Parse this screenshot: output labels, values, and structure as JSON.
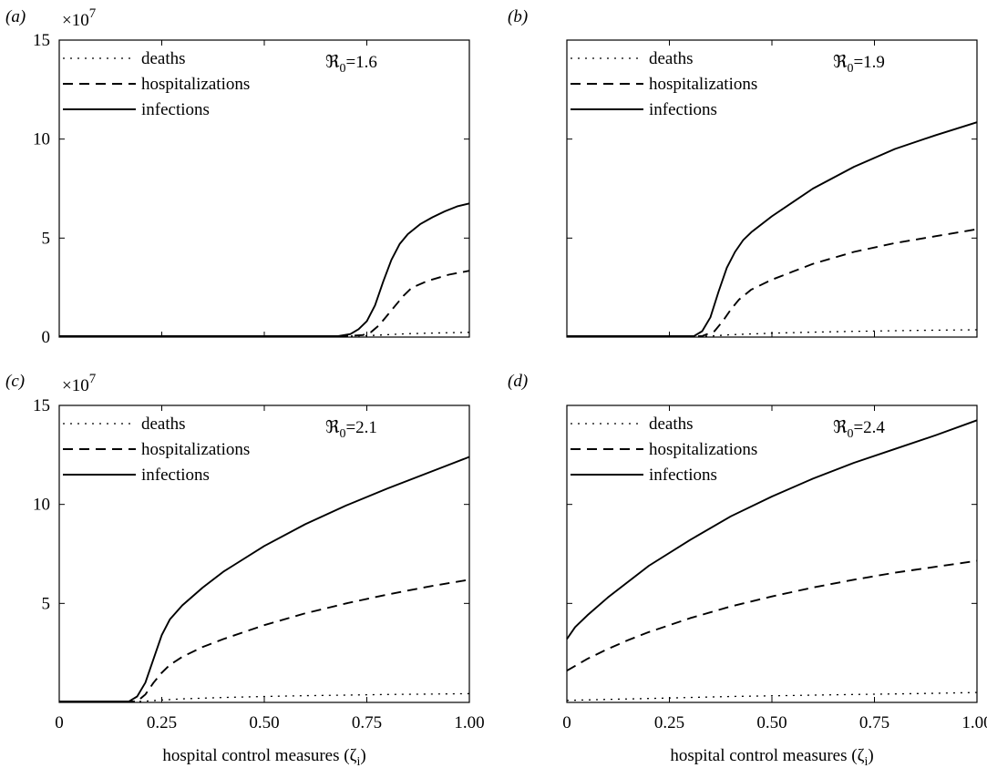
{
  "figure": {
    "x_axis_label": "hospital control measures (ζ",
    "x_axis_label_sub": "i",
    "x_axis_label_end": ")",
    "exponent_base": "×10",
    "exponent_power": "7"
  },
  "chart_data": [
    {
      "type": "line",
      "panel_label": "(a)",
      "annotation": {
        "symbol": "ℜ",
        "sub": "0",
        "value": "=1.6"
      },
      "xlim": [
        0,
        1
      ],
      "ylim": [
        0,
        15
      ],
      "y_scale_note": "×10^7",
      "x_ticks": [
        0,
        0.25,
        0.5,
        0.75,
        1.0
      ],
      "x_tick_labels": [],
      "y_ticks": [
        0,
        5,
        10,
        15
      ],
      "y_tick_labels": [
        "0",
        "5",
        "10",
        "15"
      ],
      "show_exponent": true,
      "legend": [
        "deaths",
        "hospitalizations",
        "infections"
      ],
      "series": [
        {
          "name": "deaths",
          "style": "dotted",
          "x": [
            0,
            0.7,
            0.75,
            0.8,
            0.85,
            0.9,
            0.95,
            1.0
          ],
          "y": [
            0.05,
            0.05,
            0.07,
            0.12,
            0.17,
            0.2,
            0.22,
            0.24
          ]
        },
        {
          "name": "hospitalizations",
          "style": "dashed",
          "x": [
            0,
            0.7,
            0.74,
            0.76,
            0.78,
            0.8,
            0.82,
            0.84,
            0.86,
            0.9,
            0.95,
            1.0
          ],
          "y": [
            0.05,
            0.05,
            0.1,
            0.25,
            0.6,
            1.1,
            1.6,
            2.1,
            2.5,
            2.85,
            3.15,
            3.35
          ]
        },
        {
          "name": "infections",
          "style": "solid",
          "x": [
            0,
            0.68,
            0.71,
            0.73,
            0.75,
            0.77,
            0.79,
            0.81,
            0.83,
            0.85,
            0.88,
            0.91,
            0.94,
            0.97,
            1.0
          ],
          "y": [
            0.05,
            0.05,
            0.15,
            0.4,
            0.8,
            1.6,
            2.8,
            3.9,
            4.7,
            5.2,
            5.7,
            6.05,
            6.35,
            6.6,
            6.75
          ]
        }
      ]
    },
    {
      "type": "line",
      "panel_label": "(b)",
      "annotation": {
        "symbol": "ℜ",
        "sub": "0",
        "value": "=1.9"
      },
      "xlim": [
        0,
        1
      ],
      "ylim": [
        0,
        15
      ],
      "x_ticks": [
        0,
        0.25,
        0.5,
        0.75,
        1.0
      ],
      "x_tick_labels": [],
      "y_ticks": [
        0,
        5,
        10,
        15
      ],
      "y_tick_labels": [],
      "show_exponent": false,
      "legend": [
        "deaths",
        "hospitalizations",
        "infections"
      ],
      "series": [
        {
          "name": "deaths",
          "style": "dotted",
          "x": [
            0,
            0.35,
            0.4,
            0.5,
            0.6,
            0.7,
            0.8,
            0.9,
            1.0
          ],
          "y": [
            0.05,
            0.05,
            0.12,
            0.2,
            0.25,
            0.29,
            0.32,
            0.35,
            0.37
          ]
        },
        {
          "name": "hospitalizations",
          "style": "dashed",
          "x": [
            0,
            0.33,
            0.36,
            0.38,
            0.4,
            0.42,
            0.45,
            0.5,
            0.55,
            0.6,
            0.7,
            0.8,
            0.9,
            1.0
          ],
          "y": [
            0.05,
            0.05,
            0.3,
            0.8,
            1.4,
            1.9,
            2.4,
            2.9,
            3.3,
            3.7,
            4.3,
            4.75,
            5.1,
            5.45
          ]
        },
        {
          "name": "infections",
          "style": "solid",
          "x": [
            0,
            0.31,
            0.33,
            0.35,
            0.37,
            0.39,
            0.41,
            0.43,
            0.45,
            0.5,
            0.55,
            0.6,
            0.7,
            0.8,
            0.9,
            1.0
          ],
          "y": [
            0.05,
            0.05,
            0.3,
            1.0,
            2.3,
            3.5,
            4.3,
            4.9,
            5.3,
            6.1,
            6.8,
            7.5,
            8.6,
            9.5,
            10.2,
            10.85
          ]
        }
      ]
    },
    {
      "type": "line",
      "panel_label": "(c)",
      "annotation": {
        "symbol": "ℜ",
        "sub": "0",
        "value": "=2.1"
      },
      "xlim": [
        0,
        1
      ],
      "ylim": [
        0,
        15
      ],
      "x_ticks": [
        0,
        0.25,
        0.5,
        0.75,
        1.0
      ],
      "x_tick_labels": [
        "0",
        "0.25",
        "0.50",
        "0.75",
        "1.00"
      ],
      "y_ticks": [
        0,
        5,
        10,
        15
      ],
      "y_tick_labels": [
        "",
        "5",
        "10",
        "15"
      ],
      "show_exponent": true,
      "legend": [
        "deaths",
        "hospitalizations",
        "infections"
      ],
      "series": [
        {
          "name": "deaths",
          "style": "dotted",
          "x": [
            0,
            0.2,
            0.25,
            0.3,
            0.4,
            0.5,
            0.6,
            0.7,
            0.8,
            0.9,
            1.0
          ],
          "y": [
            0.05,
            0.05,
            0.12,
            0.18,
            0.25,
            0.3,
            0.34,
            0.37,
            0.4,
            0.42,
            0.44
          ]
        },
        {
          "name": "hospitalizations",
          "style": "dashed",
          "x": [
            0,
            0.19,
            0.21,
            0.23,
            0.25,
            0.27,
            0.3,
            0.35,
            0.4,
            0.5,
            0.6,
            0.7,
            0.8,
            0.9,
            1.0
          ],
          "y": [
            0.05,
            0.05,
            0.4,
            1.0,
            1.5,
            1.9,
            2.3,
            2.8,
            3.2,
            3.9,
            4.5,
            5.0,
            5.45,
            5.85,
            6.2
          ]
        },
        {
          "name": "infections",
          "style": "solid",
          "x": [
            0,
            0.17,
            0.19,
            0.21,
            0.23,
            0.25,
            0.27,
            0.3,
            0.35,
            0.4,
            0.5,
            0.6,
            0.7,
            0.8,
            0.9,
            1.0
          ],
          "y": [
            0.05,
            0.05,
            0.3,
            1.0,
            2.2,
            3.4,
            4.2,
            4.9,
            5.8,
            6.6,
            7.9,
            9.0,
            9.95,
            10.8,
            11.6,
            12.4
          ]
        }
      ]
    },
    {
      "type": "line",
      "panel_label": "(d)",
      "annotation": {
        "symbol": "ℜ",
        "sub": "0",
        "value": "=2.4"
      },
      "xlim": [
        0,
        1
      ],
      "ylim": [
        0,
        15
      ],
      "x_ticks": [
        0,
        0.25,
        0.5,
        0.75,
        1.0
      ],
      "x_tick_labels": [
        "0",
        "0.25",
        "0.50",
        "0.75",
        "1.00"
      ],
      "y_ticks": [
        0,
        5,
        10,
        15
      ],
      "y_tick_labels": [],
      "show_exponent": false,
      "legend": [
        "deaths",
        "hospitalizations",
        "infections"
      ],
      "series": [
        {
          "name": "deaths",
          "style": "dotted",
          "x": [
            0,
            0.1,
            0.2,
            0.3,
            0.4,
            0.5,
            0.6,
            0.7,
            0.8,
            0.9,
            1.0
          ],
          "y": [
            0.1,
            0.15,
            0.2,
            0.25,
            0.3,
            0.33,
            0.37,
            0.4,
            0.43,
            0.46,
            0.5
          ]
        },
        {
          "name": "hospitalizations",
          "style": "dashed",
          "x": [
            0,
            0.05,
            0.1,
            0.15,
            0.2,
            0.3,
            0.4,
            0.5,
            0.6,
            0.7,
            0.8,
            0.9,
            1.0
          ],
          "y": [
            1.6,
            2.2,
            2.7,
            3.15,
            3.55,
            4.25,
            4.85,
            5.35,
            5.8,
            6.2,
            6.55,
            6.85,
            7.15
          ]
        },
        {
          "name": "infections",
          "style": "solid",
          "x": [
            0,
            0.02,
            0.05,
            0.1,
            0.15,
            0.2,
            0.3,
            0.4,
            0.5,
            0.6,
            0.7,
            0.8,
            0.9,
            1.0
          ],
          "y": [
            3.2,
            3.8,
            4.4,
            5.3,
            6.1,
            6.9,
            8.2,
            9.4,
            10.4,
            11.3,
            12.1,
            12.8,
            13.5,
            14.25
          ]
        }
      ]
    }
  ]
}
